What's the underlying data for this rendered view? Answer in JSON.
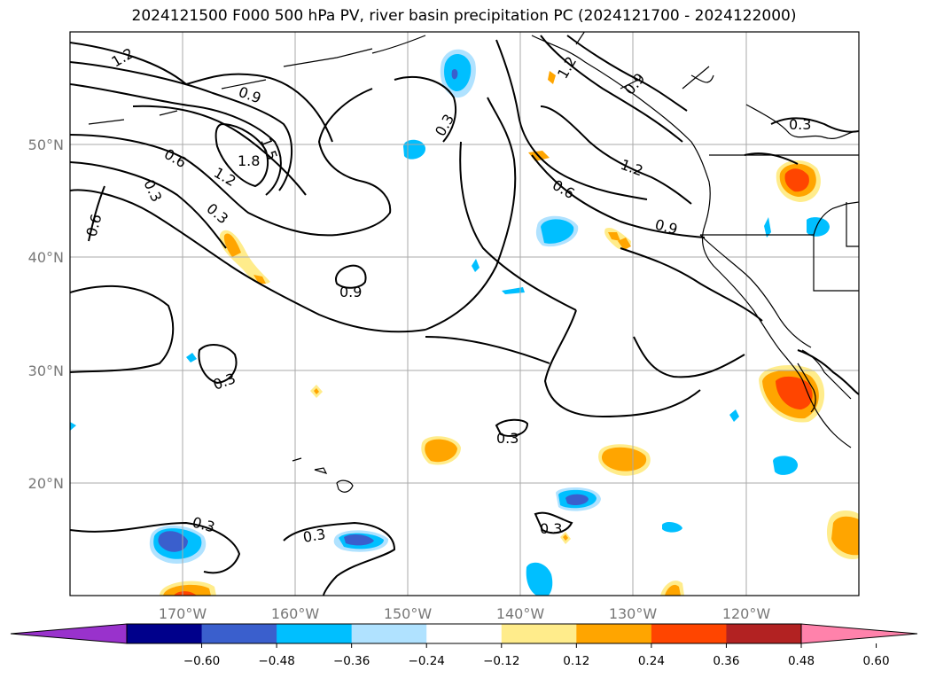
{
  "title": "2024121500 F000 500 hPa PV, river basin precipitation PC (2024121700 - 2024122000)",
  "map": {
    "projection": "plate carree",
    "lon_range": [
      -180,
      -110
    ],
    "lat_range": [
      10,
      60
    ],
    "grid": true,
    "lon_ticks": [
      "170°W",
      "160°W",
      "150°W",
      "140°W",
      "130°W",
      "120°W"
    ],
    "lat_ticks": [
      "50°N",
      "40°N",
      "30°N",
      "20°N"
    ]
  },
  "contour_labels": [
    "1.2",
    "0.9",
    "1.5",
    "1.8",
    "1.2",
    "0.6",
    "0.3",
    "0.6",
    "0.3",
    "0.9",
    "0.3",
    "0.3",
    "0.3",
    "0.3",
    "1.2",
    "0.6",
    "0.9",
    "0.3",
    "0.3",
    "0.3",
    "1.2",
    "0.9"
  ],
  "colorbar": {
    "ticks": [
      "−0.60",
      "−0.48",
      "−0.36",
      "−0.24",
      "−0.12",
      "0.12",
      "0.24",
      "0.36",
      "0.48",
      "0.60"
    ],
    "colors": [
      "#9932cc",
      "#00008b",
      "#3a5fcd",
      "#00bfff",
      "#b0e2ff",
      "#ffffff",
      "#ffec8b",
      "#ffa500",
      "#ff4500",
      "#b22222",
      "#ff82ab"
    ]
  },
  "colors": {
    "contour": "#000000",
    "grid": "#aaaaaa",
    "axis_label": "#777777",
    "pos_low": "#ffec8b",
    "pos_mid": "#ffa500",
    "pos_high": "#ff4500",
    "neg_low": "#b0e2ff",
    "neg_mid": "#00bfff",
    "neg_high": "#3a5fcd"
  }
}
